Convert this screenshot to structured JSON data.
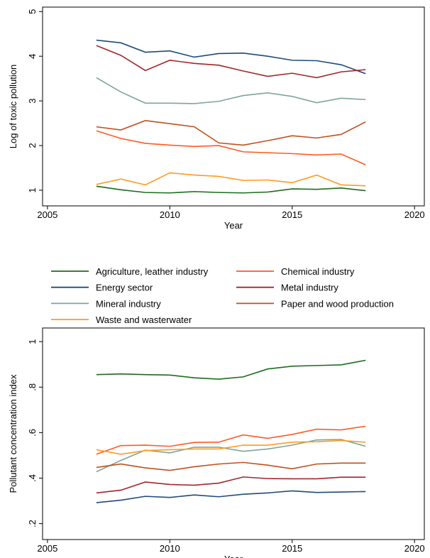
{
  "chart_data": [
    {
      "type": "line",
      "x_label": "Year",
      "y_label": "Log of toxic pollution",
      "x": [
        2007,
        2008,
        2009,
        2010,
        2011,
        2012,
        2013,
        2014,
        2015,
        2016,
        2017,
        2018
      ],
      "xlim": [
        2004.8,
        2020.4
      ],
      "xticks": [
        2005,
        2010,
        2015,
        2020
      ],
      "ylim": [
        0.65,
        5.1
      ],
      "yticks": [
        1,
        2,
        3,
        4,
        5
      ],
      "series": [
        {
          "name": "Agriculture, leather industry",
          "color": "#1e6b1e",
          "values": [
            1.09,
            1.01,
            0.95,
            0.94,
            0.97,
            0.95,
            0.94,
            0.96,
            1.03,
            1.02,
            1.05,
            0.99
          ]
        },
        {
          "name": "Chemical industry",
          "color": "#ff5a1f",
          "values": [
            2.33,
            2.16,
            2.05,
            2.01,
            1.98,
            2.0,
            1.86,
            1.84,
            1.82,
            1.79,
            1.81,
            1.57
          ]
        },
        {
          "name": "Energy sector",
          "color": "#1f4a7a",
          "values": [
            4.36,
            4.3,
            4.09,
            4.12,
            3.98,
            4.06,
            4.07,
            4.0,
            3.91,
            3.9,
            3.81,
            3.61
          ]
        },
        {
          "name": "Metal industry",
          "color": "#a3262b",
          "values": [
            4.24,
            4.02,
            3.68,
            3.91,
            3.84,
            3.8,
            3.67,
            3.55,
            3.62,
            3.52,
            3.65,
            3.7
          ]
        },
        {
          "name": "Mineral industry",
          "color": "#7fa59a",
          "values": [
            3.52,
            3.2,
            2.95,
            2.95,
            2.94,
            2.99,
            3.12,
            3.18,
            3.1,
            2.96,
            3.06,
            3.03
          ]
        },
        {
          "name": "Paper and wood production",
          "color": "#c24f1c",
          "values": [
            2.42,
            2.35,
            2.56,
            2.49,
            2.42,
            2.06,
            2.01,
            2.11,
            2.22,
            2.17,
            2.25,
            2.53
          ]
        },
        {
          "name": "Waste and wasterwater",
          "color": "#ff9b1f",
          "values": [
            1.13,
            1.25,
            1.12,
            1.39,
            1.34,
            1.31,
            1.22,
            1.23,
            1.17,
            1.34,
            1.12,
            1.1
          ]
        }
      ]
    },
    {
      "type": "line",
      "x_label": "Year",
      "y_label": "Pollutant concentration index",
      "x": [
        2007,
        2008,
        2009,
        2010,
        2011,
        2012,
        2013,
        2014,
        2015,
        2016,
        2017,
        2018
      ],
      "xlim": [
        2004.8,
        2020.4
      ],
      "xticks": [
        2005,
        2010,
        2015,
        2020
      ],
      "ylim": [
        0.13,
        1.06
      ],
      "yticks": [
        {
          "value": 0.2,
          "label": ".2"
        },
        {
          "value": 0.4,
          "label": ".4"
        },
        {
          "value": 0.6,
          "label": ".6"
        },
        {
          "value": 0.8,
          "label": ".8"
        },
        1
      ],
      "series": [
        {
          "name": "Agriculture, leather industry",
          "color": "#1e6b1e",
          "values": [
            0.855,
            0.858,
            0.855,
            0.853,
            0.841,
            0.835,
            0.845,
            0.88,
            0.892,
            0.895,
            0.898,
            0.918
          ]
        },
        {
          "name": "Chemical industry",
          "color": "#ff5a1f",
          "values": [
            0.505,
            0.543,
            0.545,
            0.54,
            0.557,
            0.558,
            0.59,
            0.575,
            0.592,
            0.615,
            0.612,
            0.628
          ]
        },
        {
          "name": "Energy sector",
          "color": "#1f4a7a",
          "values": [
            0.292,
            0.303,
            0.32,
            0.315,
            0.326,
            0.318,
            0.329,
            0.335,
            0.344,
            0.337,
            0.339,
            0.341
          ]
        },
        {
          "name": "Metal industry",
          "color": "#a3262b",
          "values": [
            0.335,
            0.347,
            0.383,
            0.372,
            0.369,
            0.378,
            0.405,
            0.398,
            0.397,
            0.397,
            0.404,
            0.404
          ]
        },
        {
          "name": "Mineral industry",
          "color": "#7fa59a",
          "values": [
            0.428,
            0.478,
            0.523,
            0.511,
            0.536,
            0.536,
            0.518,
            0.528,
            0.545,
            0.568,
            0.57,
            0.54
          ]
        },
        {
          "name": "Paper and wood production",
          "color": "#c24f1c",
          "values": [
            0.447,
            0.462,
            0.445,
            0.434,
            0.45,
            0.462,
            0.469,
            0.457,
            0.441,
            0.462,
            0.466,
            0.466
          ]
        },
        {
          "name": "Waste and wasterwater",
          "color": "#ff9b1f",
          "values": [
            0.525,
            0.505,
            0.521,
            0.525,
            0.528,
            0.528,
            0.545,
            0.545,
            0.558,
            0.56,
            0.565,
            0.558
          ]
        }
      ]
    }
  ]
}
